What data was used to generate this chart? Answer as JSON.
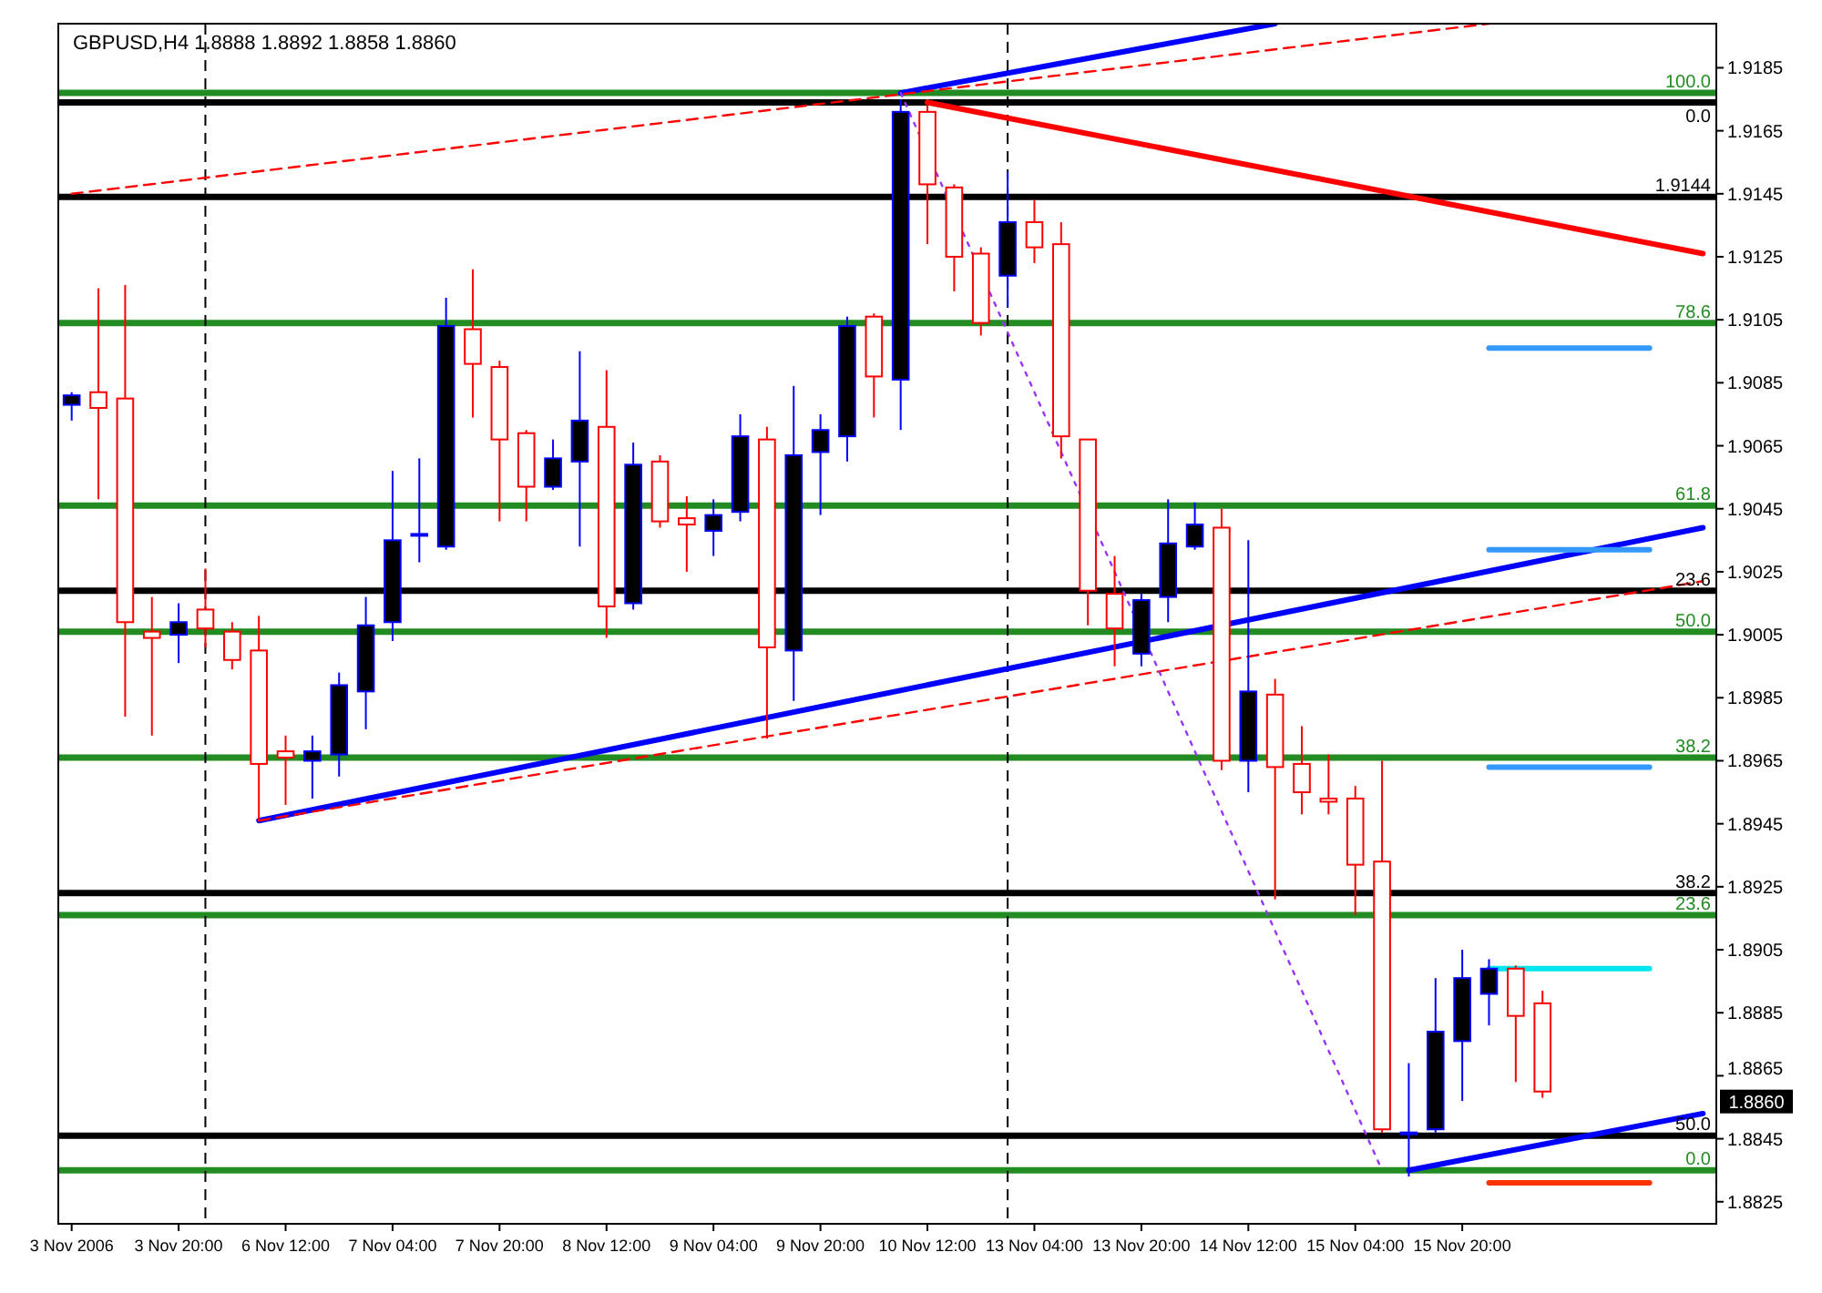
{
  "chart_data": {
    "type": "candlestick",
    "title": "GBPUSD,H4 1.8888 1.8892 1.8858 1.8860",
    "categories": [
      "3 Nov 2006",
      null,
      null,
      null,
      "3 Nov 20:00",
      null,
      null,
      null,
      "6 Nov 12:00",
      null,
      null,
      null,
      "7 Nov 04:00",
      null,
      null,
      null,
      "7 Nov 20:00",
      null,
      null,
      null,
      "8 Nov 12:00",
      null,
      null,
      null,
      "9 Nov 04:00",
      null,
      null,
      null,
      "9 Nov 20:00",
      null,
      null,
      null,
      "10 Nov 12:00",
      null,
      null,
      null,
      "13 Nov 04:00",
      null,
      null,
      null,
      "13 Nov 20:00",
      null,
      null,
      null,
      "14 Nov 12:00",
      null,
      null,
      null,
      "15 Nov 04:00",
      null,
      null,
      null,
      "15 Nov 20:00",
      null,
      null,
      null,
      null,
      null,
      null,
      null,
      null,
      null
    ],
    "ohlc": [
      [
        1.9078,
        1.9082,
        1.9073,
        1.9081
      ],
      [
        1.9082,
        1.9115,
        1.9048,
        1.9077
      ],
      [
        1.908,
        1.9116,
        1.8979,
        1.9009
      ],
      [
        1.9006,
        1.9017,
        1.8973,
        1.9004
      ],
      [
        1.9005,
        1.9015,
        1.8996,
        1.9009
      ],
      [
        1.9013,
        1.9026,
        1.9001,
        1.9007
      ],
      [
        1.9006,
        1.9009,
        1.8994,
        1.8997
      ],
      [
        1.9,
        1.9011,
        1.8946,
        1.8964
      ],
      [
        1.8968,
        1.8973,
        1.8951,
        1.8966
      ],
      [
        1.8965,
        1.8973,
        1.8953,
        1.8968
      ],
      [
        1.8967,
        1.8993,
        1.896,
        1.8989
      ],
      [
        1.8987,
        1.9017,
        1.8975,
        1.9008
      ],
      [
        1.9009,
        1.9057,
        1.9003,
        1.9035
      ],
      [
        1.9037,
        1.9061,
        1.9028,
        1.9037
      ],
      [
        1.9033,
        1.9112,
        1.9032,
        1.9103
      ],
      [
        1.9102,
        1.9121,
        1.9074,
        1.9091
      ],
      [
        1.909,
        1.9092,
        1.9041,
        1.9067
      ],
      [
        1.9069,
        1.907,
        1.9041,
        1.9052
      ],
      [
        1.9052,
        1.9067,
        1.9051,
        1.9061
      ],
      [
        1.906,
        1.9095,
        1.9033,
        1.9073
      ],
      [
        1.9071,
        1.9089,
        1.9004,
        1.9014
      ],
      [
        1.9015,
        1.9066,
        1.9013,
        1.9059
      ],
      [
        1.906,
        1.9062,
        1.9039,
        1.9041
      ],
      [
        1.9042,
        1.9049,
        1.9025,
        1.904
      ],
      [
        1.9038,
        1.9048,
        1.903,
        1.9043
      ],
      [
        1.9044,
        1.9075,
        1.9041,
        1.9068
      ],
      [
        1.9067,
        1.9071,
        1.8972,
        1.9001
      ],
      [
        1.9,
        1.9084,
        1.8984,
        1.9062
      ],
      [
        1.9063,
        1.9075,
        1.9043,
        1.907
      ],
      [
        1.9068,
        1.9106,
        1.906,
        1.9103
      ],
      [
        1.9106,
        1.9107,
        1.9074,
        1.9087
      ],
      [
        1.9086,
        1.9175,
        1.907,
        1.9171
      ],
      [
        1.9171,
        1.9175,
        1.9129,
        1.9148
      ],
      [
        1.9147,
        1.9148,
        1.9114,
        1.9125
      ],
      [
        1.9126,
        1.9128,
        1.91,
        1.9104
      ],
      [
        1.9119,
        1.9152,
        1.9109,
        1.9136
      ],
      [
        1.9136,
        1.9143,
        1.9123,
        1.9128
      ],
      [
        1.9129,
        1.9136,
        1.9061,
        1.9068
      ],
      [
        1.9067,
        1.9067,
        1.9008,
        1.9019
      ],
      [
        1.9018,
        1.903,
        1.8995,
        1.9007
      ],
      [
        1.8999,
        1.9018,
        1.8995,
        1.9016
      ],
      [
        1.9017,
        1.9048,
        1.9009,
        1.9034
      ],
      [
        1.9033,
        1.9047,
        1.9032,
        1.904
      ],
      [
        1.9039,
        1.9045,
        1.8962,
        1.8965
      ],
      [
        1.8965,
        1.9035,
        1.8955,
        1.8987
      ],
      [
        1.8986,
        1.8991,
        1.8921,
        1.8963
      ],
      [
        1.8964,
        1.8976,
        1.8948,
        1.8955
      ],
      [
        1.8953,
        1.8967,
        1.8948,
        1.8952
      ],
      [
        1.8953,
        1.8957,
        1.8916,
        1.8932
      ],
      [
        1.8933,
        1.8965,
        1.8847,
        1.8848
      ],
      [
        1.8847,
        1.8869,
        1.8833,
        1.8847
      ],
      [
        1.8848,
        1.8896,
        1.8847,
        1.8879
      ],
      [
        1.8876,
        1.8905,
        1.8857,
        1.8896
      ],
      [
        1.8891,
        1.8902,
        1.8881,
        1.8899
      ],
      [
        1.8899,
        1.89,
        1.8863,
        1.8884
      ],
      [
        1.8888,
        1.8892,
        1.8858,
        1.886
      ],
      null,
      null,
      null,
      null,
      null,
      null
    ],
    "colors": [
      "#0000ff",
      "#ff0000",
      "#ff0000",
      "#ff0000",
      "#0000ff",
      "#ff0000",
      "#ff0000",
      "#ff0000",
      "#ff0000",
      "#0000ff",
      "#0000ff",
      "#0000ff",
      "#0000ff",
      "#0000ff",
      "#0000ff",
      "#ff0000",
      "#ff0000",
      "#ff0000",
      "#0000ff",
      "#0000ff",
      "#ff0000",
      "#0000ff",
      "#ff0000",
      "#ff0000",
      "#0000ff",
      "#0000ff",
      "#ff0000",
      "#0000ff",
      "#0000ff",
      "#0000ff",
      "#ff0000",
      "#0000ff",
      "#ff0000",
      "#ff0000",
      "#ff0000",
      "#0000ff",
      "#ff0000",
      "#ff0000",
      "#ff0000",
      "#ff0000",
      "#0000ff",
      "#0000ff",
      "#0000ff",
      "#ff0000",
      "#0000ff",
      "#ff0000",
      "#ff0000",
      "#ff0000",
      "#ff0000",
      "#ff0000",
      "#0000ff",
      "#0000ff",
      "#0000ff",
      "#0000ff",
      "#ff0000",
      "#ff0000",
      null,
      null,
      null,
      null,
      null,
      null
    ],
    "series": [
      {
        "type": "line",
        "color": "#0000ff",
        "line_style": "solid",
        "values": [
          null,
          null,
          null,
          null,
          null,
          null,
          null,
          1.8946,
          null,
          null,
          null,
          null,
          null,
          null,
          null,
          null,
          null,
          null,
          null,
          null,
          null,
          null,
          null,
          null,
          null,
          null,
          null,
          null,
          null,
          null,
          null,
          null,
          null,
          null,
          null,
          null,
          null,
          null,
          null,
          null,
          null,
          null,
          null,
          null,
          null,
          null,
          null,
          null,
          null,
          null,
          null,
          null,
          null,
          null,
          null,
          null,
          null,
          null,
          null,
          null,
          null,
          1.9039
        ]
      },
      {
        "type": "line",
        "color": "#0000ff",
        "line_style": "solid",
        "values": [
          null,
          null,
          null,
          null,
          null,
          null,
          null,
          null,
          null,
          null,
          null,
          null,
          null,
          null,
          null,
          null,
          null,
          null,
          null,
          null,
          null,
          null,
          null,
          null,
          null,
          null,
          null,
          null,
          null,
          null,
          null,
          1.9177,
          null,
          null,
          null,
          null,
          null,
          null,
          null,
          null,
          null,
          null,
          null,
          null,
          null,
          1.9199,
          null,
          null,
          null,
          null,
          null,
          null,
          null,
          null,
          null,
          null,
          null,
          null,
          null,
          null,
          null,
          null
        ]
      },
      {
        "type": "line",
        "color": "#0000ff",
        "line_style": "solid",
        "values": [
          null,
          null,
          null,
          null,
          null,
          null,
          null,
          null,
          null,
          null,
          null,
          null,
          null,
          null,
          null,
          null,
          null,
          null,
          null,
          null,
          null,
          null,
          null,
          null,
          null,
          null,
          null,
          null,
          null,
          null,
          null,
          null,
          null,
          null,
          null,
          null,
          null,
          null,
          null,
          null,
          null,
          null,
          null,
          null,
          null,
          null,
          null,
          null,
          null,
          null,
          1.8835,
          null,
          null,
          null,
          null,
          null,
          null,
          null,
          null,
          null,
          null,
          1.8853
        ]
      },
      {
        "type": "line",
        "color": "#ff0000",
        "line_style": "solid",
        "values": [
          null,
          null,
          null,
          null,
          null,
          null,
          null,
          null,
          null,
          null,
          null,
          null,
          null,
          null,
          null,
          null,
          null,
          null,
          null,
          null,
          null,
          null,
          null,
          null,
          null,
          null,
          null,
          null,
          null,
          null,
          null,
          null,
          1.9174,
          null,
          null,
          null,
          null,
          null,
          null,
          null,
          null,
          null,
          null,
          null,
          null,
          null,
          null,
          null,
          null,
          null,
          null,
          null,
          null,
          null,
          null,
          null,
          null,
          null,
          null,
          null,
          null,
          1.9126
        ]
      },
      {
        "type": "line",
        "color": "#ff0000",
        "line_style": "dashed",
        "values": [
          1.9145,
          null,
          null,
          null,
          null,
          null,
          null,
          null,
          null,
          null,
          null,
          null,
          null,
          null,
          null,
          null,
          null,
          null,
          null,
          null,
          null,
          null,
          null,
          null,
          null,
          null,
          null,
          null,
          null,
          null,
          null,
          null,
          null,
          null,
          null,
          null,
          null,
          null,
          null,
          null,
          null,
          null,
          null,
          null,
          null,
          null,
          null,
          null,
          null,
          null,
          null,
          null,
          null,
          1.9199,
          null,
          null,
          null,
          null,
          null,
          null,
          null,
          null
        ]
      },
      {
        "type": "line",
        "color": "#ff0000",
        "line_style": "dashed",
        "values": [
          null,
          null,
          null,
          null,
          null,
          null,
          null,
          1.8946,
          null,
          null,
          null,
          null,
          null,
          null,
          null,
          null,
          null,
          null,
          null,
          null,
          null,
          null,
          null,
          null,
          null,
          null,
          null,
          null,
          null,
          null,
          null,
          null,
          null,
          null,
          null,
          null,
          null,
          null,
          null,
          null,
          null,
          null,
          null,
          null,
          null,
          null,
          null,
          null,
          null,
          null,
          null,
          null,
          null,
          null,
          null,
          null,
          null,
          null,
          null,
          null,
          null,
          1.9022
        ]
      },
      {
        "type": "line",
        "color": "#9933ff",
        "line_style": "dotted",
        "values": [
          null,
          null,
          null,
          null,
          null,
          null,
          null,
          null,
          null,
          null,
          null,
          null,
          null,
          null,
          null,
          null,
          null,
          null,
          null,
          null,
          null,
          null,
          null,
          null,
          null,
          null,
          null,
          null,
          null,
          null,
          null,
          1.9177,
          null,
          null,
          null,
          null,
          null,
          null,
          null,
          null,
          null,
          null,
          null,
          null,
          null,
          null,
          null,
          null,
          null,
          1.8835,
          null,
          null,
          null,
          null,
          null,
          null,
          null,
          null,
          null,
          null,
          null,
          null
        ]
      },
      {
        "type": "line",
        "color": "#3399ff",
        "line_style": "solid",
        "values": [
          null,
          null,
          null,
          null,
          null,
          null,
          null,
          null,
          null,
          null,
          null,
          null,
          null,
          null,
          null,
          null,
          null,
          null,
          null,
          null,
          null,
          null,
          null,
          null,
          null,
          null,
          null,
          null,
          null,
          null,
          null,
          null,
          null,
          null,
          null,
          null,
          null,
          null,
          null,
          null,
          null,
          null,
          null,
          null,
          null,
          null,
          null,
          null,
          null,
          null,
          null,
          null,
          null,
          1.9096,
          null,
          null,
          null,
          null,
          null,
          1.9096,
          null,
          null
        ]
      },
      {
        "type": "line",
        "color": "#3399ff",
        "line_style": "solid",
        "values": [
          null,
          null,
          null,
          null,
          null,
          null,
          null,
          null,
          null,
          null,
          null,
          null,
          null,
          null,
          null,
          null,
          null,
          null,
          null,
          null,
          null,
          null,
          null,
          null,
          null,
          null,
          null,
          null,
          null,
          null,
          null,
          null,
          null,
          null,
          null,
          null,
          null,
          null,
          null,
          null,
          null,
          null,
          null,
          null,
          null,
          null,
          null,
          null,
          null,
          null,
          null,
          null,
          null,
          1.9032,
          null,
          null,
          null,
          null,
          null,
          1.9032,
          null,
          null
        ]
      },
      {
        "type": "line",
        "color": "#3399ff",
        "line_style": "solid",
        "values": [
          null,
          null,
          null,
          null,
          null,
          null,
          null,
          null,
          null,
          null,
          null,
          null,
          null,
          null,
          null,
          null,
          null,
          null,
          null,
          null,
          null,
          null,
          null,
          null,
          null,
          null,
          null,
          null,
          null,
          null,
          null,
          null,
          null,
          null,
          null,
          null,
          null,
          null,
          null,
          null,
          null,
          null,
          null,
          null,
          null,
          null,
          null,
          null,
          null,
          null,
          null,
          null,
          null,
          1.8963,
          null,
          null,
          null,
          null,
          null,
          1.8963,
          null,
          null
        ]
      },
      {
        "type": "line",
        "color": "#00e5ee",
        "line_style": "solid",
        "values": [
          null,
          null,
          null,
          null,
          null,
          null,
          null,
          null,
          null,
          null,
          null,
          null,
          null,
          null,
          null,
          null,
          null,
          null,
          null,
          null,
          null,
          null,
          null,
          null,
          null,
          null,
          null,
          null,
          null,
          null,
          null,
          null,
          null,
          null,
          null,
          null,
          null,
          null,
          null,
          null,
          null,
          null,
          null,
          null,
          null,
          null,
          null,
          null,
          null,
          null,
          null,
          null,
          null,
          1.8899,
          null,
          null,
          null,
          null,
          null,
          1.8899,
          null,
          null
        ]
      },
      {
        "type": "line",
        "color": "#ff3300",
        "line_style": "solid",
        "values": [
          null,
          null,
          null,
          null,
          null,
          null,
          null,
          null,
          null,
          null,
          null,
          null,
          null,
          null,
          null,
          null,
          null,
          null,
          null,
          null,
          null,
          null,
          null,
          null,
          null,
          null,
          null,
          null,
          null,
          null,
          null,
          null,
          null,
          null,
          null,
          null,
          null,
          null,
          null,
          null,
          null,
          null,
          null,
          null,
          null,
          null,
          null,
          null,
          null,
          null,
          null,
          null,
          null,
          1.8831,
          null,
          null,
          null,
          null,
          null,
          1.8831,
          null,
          null
        ]
      }
    ],
    "ref_lines": [
      {
        "axis": "y",
        "value": 1.9177,
        "color": "#228b22",
        "line_style": "solid"
      },
      {
        "axis": "y",
        "value": 1.9104,
        "color": "#228b22",
        "line_style": "solid"
      },
      {
        "axis": "y",
        "value": 1.9046,
        "color": "#228b22",
        "line_style": "solid"
      },
      {
        "axis": "y",
        "value": 1.9006,
        "color": "#228b22",
        "line_style": "solid"
      },
      {
        "axis": "y",
        "value": 1.8966,
        "color": "#228b22",
        "line_style": "solid"
      },
      {
        "axis": "y",
        "value": 1.8916,
        "color": "#228b22",
        "line_style": "solid"
      },
      {
        "axis": "y",
        "value": 1.8835,
        "color": "#228b22",
        "line_style": "solid"
      },
      {
        "axis": "y",
        "value": 1.9174,
        "color": "#000000",
        "line_style": "solid"
      },
      {
        "axis": "y",
        "value": 1.9019,
        "color": "#000000",
        "line_style": "solid"
      },
      {
        "axis": "y",
        "value": 1.8923,
        "color": "#000000",
        "line_style": "solid"
      },
      {
        "axis": "y",
        "value": 1.8846,
        "color": "#000000",
        "line_style": "solid"
      },
      {
        "axis": "y",
        "value": 1.9144,
        "color": "#000000",
        "line_style": "solid"
      }
    ],
    "annotations": [
      {
        "text": "100.0",
        "y": 1.9177
      },
      {
        "text": "78.6",
        "y": 1.9104
      },
      {
        "text": "61.8",
        "y": 1.9046
      },
      {
        "text": "50.0",
        "y": 1.9006
      },
      {
        "text": "38.2",
        "y": 1.8966
      },
      {
        "text": "23.6",
        "y": 1.8916
      },
      {
        "text": "0.0",
        "y": 1.8835
      },
      {
        "text": "0.0",
        "y": 1.9174
      },
      {
        "text": "23.6",
        "y": 1.9019
      },
      {
        "text": "38.2",
        "y": 1.8923
      },
      {
        "text": "50.0",
        "y": 1.8846
      },
      {
        "text": "1.9144",
        "y": 1.9144
      },
      "1.8860"
    ],
    "ylim": [
      1.8818,
      1.9199
    ],
    "yticks": [
      1.8825,
      1.8845,
      1.8865,
      1.8885,
      1.8905,
      1.8925,
      1.8945,
      1.8965,
      1.8985,
      1.9005,
      1.9025,
      1.9045,
      1.9065,
      1.9085,
      1.9105,
      1.9125,
      1.9145,
      1.9165,
      1.9185
    ]
  }
}
